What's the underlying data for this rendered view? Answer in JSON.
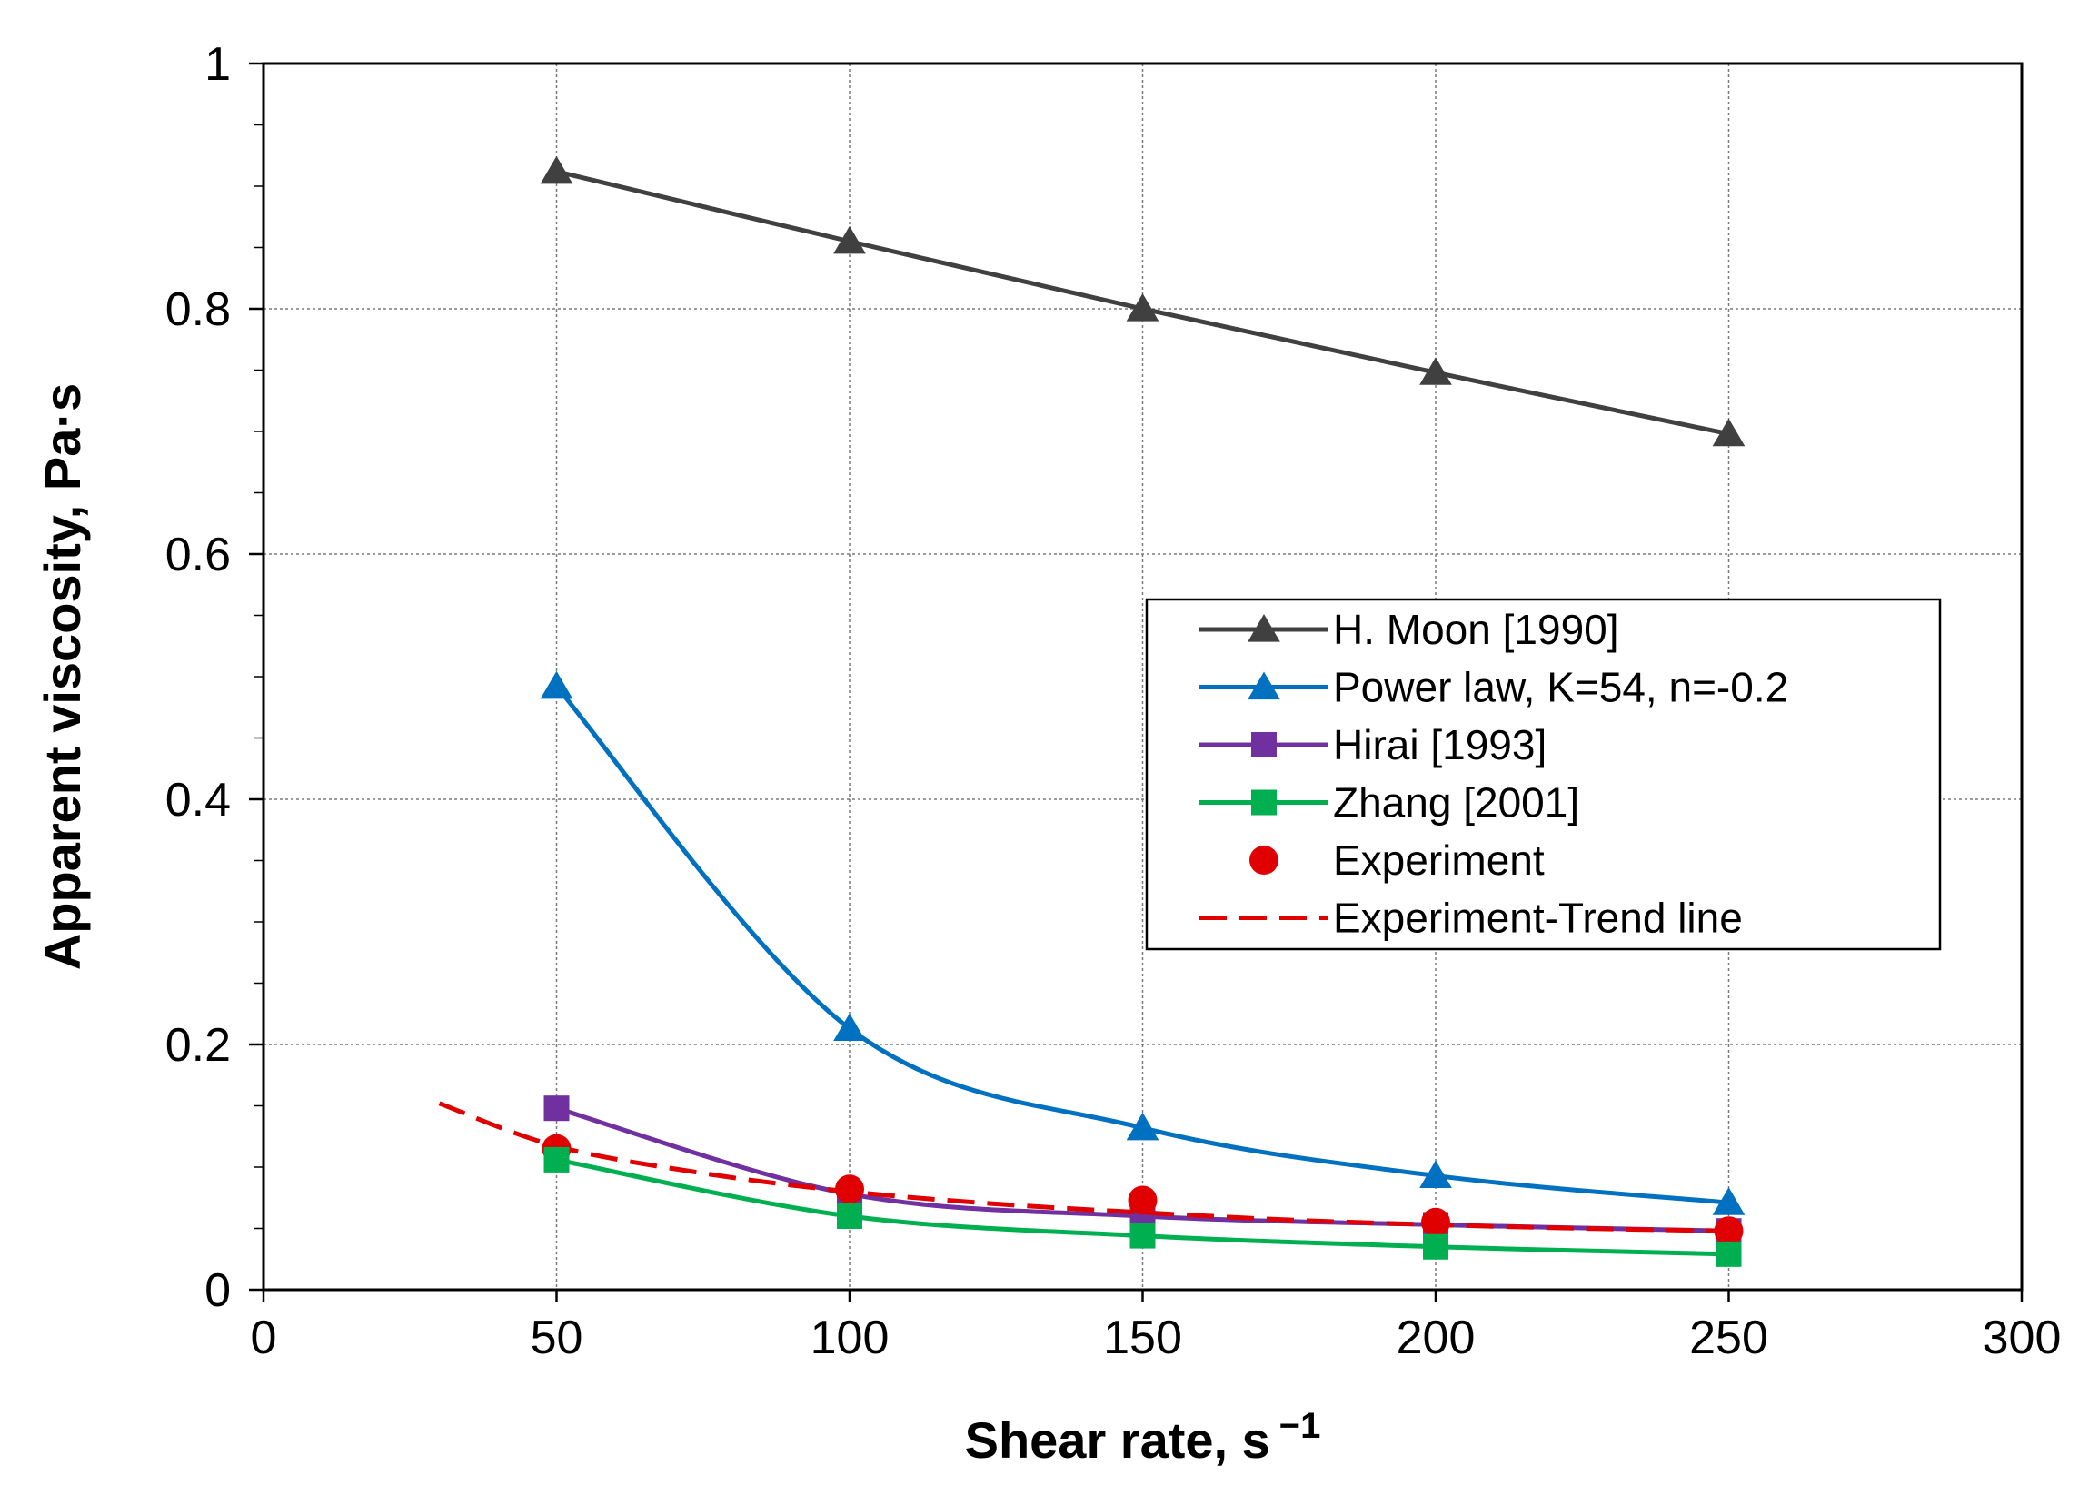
{
  "chart_data": {
    "type": "line",
    "title": "",
    "xlabel": "Shear rate, s",
    "xlabel_sup": "−1",
    "ylabel": "Apparent viscosity, Pa·s",
    "xlim": [
      0,
      300
    ],
    "ylim": [
      0,
      1
    ],
    "xticks": [
      {
        "value": 0,
        "label": "0"
      },
      {
        "value": 50,
        "label": "50"
      },
      {
        "value": 100,
        "label": "100"
      },
      {
        "value": 150,
        "label": "150"
      },
      {
        "value": 200,
        "label": "200"
      },
      {
        "value": 250,
        "label": "250"
      },
      {
        "value": 300,
        "label": "300"
      }
    ],
    "yticks": [
      {
        "value": 0,
        "label": "0"
      },
      {
        "value": 0.2,
        "label": "0.2"
      },
      {
        "value": 0.4,
        "label": "0.4"
      },
      {
        "value": 0.6,
        "label": "0.6"
      },
      {
        "value": 0.8,
        "label": "0.8"
      },
      {
        "value": 1,
        "label": "1"
      }
    ],
    "grid": true,
    "legend_position": "center-right",
    "series": [
      {
        "name": "H. Moon [1990]",
        "marker": "triangle",
        "line": "solid",
        "color": "#404040",
        "x": [
          50,
          100,
          150,
          200,
          250
        ],
        "y": [
          0.912,
          0.855,
          0.8,
          0.748,
          0.698
        ]
      },
      {
        "name": "Power law, K=54, n=-0.2",
        "marker": "triangle",
        "line": "solid",
        "color": "#0070c0",
        "x": [
          50,
          100,
          150,
          200,
          250
        ],
        "y": [
          0.492,
          0.213,
          0.132,
          0.093,
          0.071
        ]
      },
      {
        "name": "Hirai [1993]",
        "marker": "square",
        "line": "solid",
        "color": "#7030a0",
        "x": [
          50,
          100,
          150,
          200,
          250
        ],
        "y": [
          0.148,
          0.078,
          0.06,
          0.053,
          0.048
        ]
      },
      {
        "name": "Zhang [2001]",
        "marker": "square",
        "line": "solid",
        "color": "#00b050",
        "x": [
          50,
          100,
          150,
          200,
          250
        ],
        "y": [
          0.106,
          0.06,
          0.044,
          0.035,
          0.029
        ]
      },
      {
        "name": "Experiment",
        "marker": "circle",
        "line": "none",
        "color": "#e00000",
        "x": [
          50,
          100,
          150,
          200,
          250
        ],
        "y": [
          0.115,
          0.082,
          0.073,
          0.055,
          0.048
        ]
      },
      {
        "name": "Experiment-Trend line",
        "marker": "none",
        "line": "dashed",
        "color": "#e00000",
        "x": [
          30,
          50,
          75,
          100,
          125,
          150,
          175,
          200,
          225,
          250
        ],
        "y": [
          0.152,
          0.117,
          0.095,
          0.08,
          0.07,
          0.063,
          0.057,
          0.053,
          0.05,
          0.048
        ]
      }
    ]
  }
}
